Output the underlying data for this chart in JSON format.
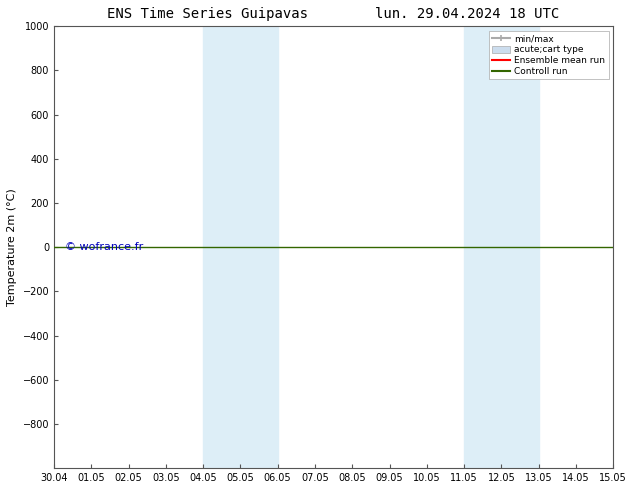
{
  "title_left": "ENS Time Series Guipavas",
  "title_right": "lun. 29.04.2024 18 UTC",
  "ylabel": "Temperature 2m (°C)",
  "ylim_top": -1000,
  "ylim_bottom": 1000,
  "yticks": [
    -800,
    -600,
    -400,
    -200,
    0,
    200,
    400,
    600,
    800,
    1000
  ],
  "xtick_labels": [
    "30.04",
    "01.05",
    "02.05",
    "03.05",
    "04.05",
    "05.05",
    "06.05",
    "07.05",
    "08.05",
    "09.05",
    "10.05",
    "11.05",
    "12.05",
    "13.05",
    "14.05",
    "15.05"
  ],
  "bg_color": "#ffffff",
  "plot_bg_color": "#ffffff",
  "shaded_regions": [
    [
      4.0,
      5.0
    ],
    [
      5.0,
      6.0
    ],
    [
      11.0,
      12.0
    ],
    [
      12.0,
      13.0
    ]
  ],
  "shade_color": "#ddeef7",
  "horizontal_line_y": 0,
  "control_run_color": "#336600",
  "ensemble_mean_color": "#ff0000",
  "watermark_text": "© wofrance.fr",
  "watermark_color": "#0000bb",
  "legend_items": [
    {
      "label": "min/max",
      "color": "#aaaaaa",
      "lw": 1.5
    },
    {
      "label": "acute;cart type",
      "color": "#ccddee",
      "lw": 6
    },
    {
      "label": "Ensemble mean run",
      "color": "#ff0000",
      "lw": 1.5
    },
    {
      "label": "Controll run",
      "color": "#336600",
      "lw": 1.5
    }
  ],
  "x_min": 0,
  "x_max": 15,
  "num_xticks": 16,
  "title_fontsize": 10,
  "ylabel_fontsize": 8,
  "tick_fontsize": 7,
  "legend_fontsize": 6.5
}
